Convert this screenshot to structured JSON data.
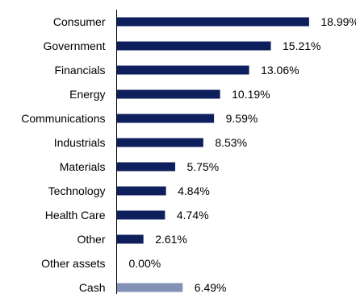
{
  "chart_data": {
    "type": "bar",
    "orientation": "horizontal",
    "categories": [
      "Consumer",
      "Government",
      "Financials",
      "Energy",
      "Communications",
      "Industrials",
      "Materials",
      "Technology",
      "Health Care",
      "Other",
      "Other assets",
      "Cash"
    ],
    "values": [
      18.99,
      15.21,
      13.06,
      10.19,
      9.59,
      8.53,
      5.75,
      4.84,
      4.74,
      2.61,
      0.0,
      6.49
    ],
    "value_labels": [
      "18.99%",
      "15.21%",
      "13.06%",
      "10.19%",
      "9.59%",
      "8.53%",
      "5.75%",
      "4.84%",
      "4.74%",
      "2.61%",
      "0.00%",
      "6.49%"
    ],
    "colors": [
      "#0d1f5c",
      "#0d1f5c",
      "#0d1f5c",
      "#0d1f5c",
      "#0d1f5c",
      "#0d1f5c",
      "#0d1f5c",
      "#0d1f5c",
      "#0d1f5c",
      "#0d1f5c",
      "#0d1f5c",
      "#8391b6"
    ],
    "xlim": [
      0,
      19
    ],
    "grid": false,
    "legend": "none",
    "axis_color": "#000000"
  }
}
